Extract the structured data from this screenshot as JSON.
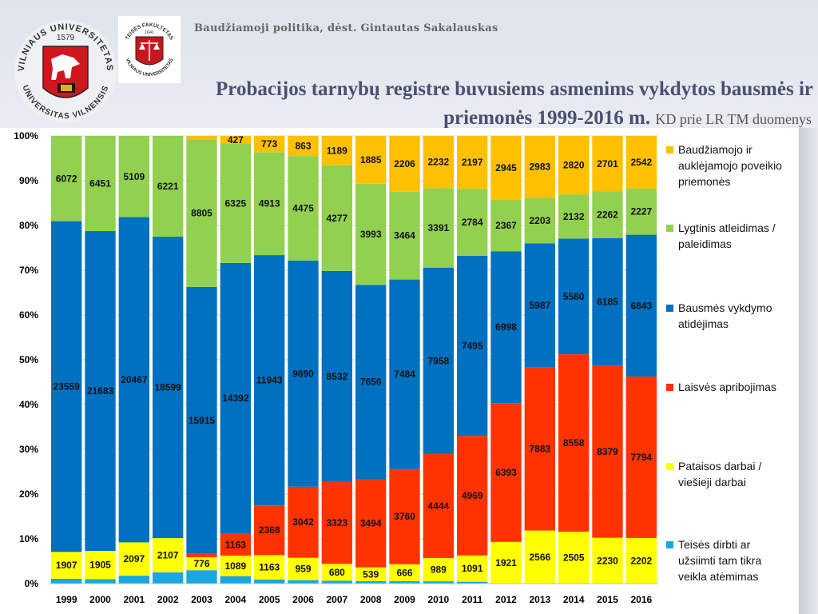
{
  "header": {
    "course": "Baudžiamoji politika, dėst. Gintautas Sakalauskas",
    "title_line1": "Probacijos tarnybų registre buvusiems asmenims vykdytos bausmės ir",
    "title_line2_bold": "priemonės 1999-2016 m.",
    "title_line2_source": "KD prie LR TM duomenys"
  },
  "logos": {
    "university_ring_top": "VILNIAUS UNIVERSITETAS",
    "university_ring_bottom": "UNIVERSITAS VILNENSIS",
    "university_year": "1579",
    "faculty_ring_top": "TEISĖS FAKULTETAS",
    "faculty_ring_bottom": "VILNIAUS UNIVERSITETAS",
    "faculty_year": "1641"
  },
  "chart_data": {
    "type": "bar",
    "stacking": "100%",
    "grid": true,
    "legend_position": "right",
    "ylim": [
      0,
      100
    ],
    "yticks": [
      "0%",
      "10%",
      "20%",
      "30%",
      "40%",
      "50%",
      "60%",
      "70%",
      "80%",
      "90%",
      "100%"
    ],
    "categories": [
      "1999",
      "2000",
      "2001",
      "2002",
      "2003",
      "2004",
      "2005",
      "2006",
      "2007",
      "2008",
      "2009",
      "2010",
      "2011",
      "2012",
      "2013",
      "2014",
      "2015",
      "2016"
    ],
    "series": [
      {
        "name": "Teisės dirbti ar užsiimti tam tikra veikla atėmimas",
        "color": "#1aa7e0",
        "values": [
          350,
          310,
          500,
          700,
          800,
          400,
          200,
          150,
          120,
          100,
          100,
          100,
          80,
          0,
          0,
          0,
          0,
          0
        ],
        "labels": [
          "",
          "",
          "",
          "",
          "",
          "",
          "",
          "",
          "",
          "",
          "",
          "",
          "",
          "",
          "",
          "",
          "",
          ""
        ]
      },
      {
        "name": "Pataisos darbai / viešieji darbai",
        "color": "#ffff00",
        "values": [
          1907,
          1905,
          2097,
          2107,
          776,
          1089,
          1163,
          959,
          680,
          539,
          666,
          989,
          1091,
          1921,
          2566,
          2505,
          2230,
          2202
        ],
        "labels": [
          "1907",
          "1905",
          "2097",
          "2107",
          "776",
          "1089",
          "1163",
          "959",
          "680",
          "539",
          "666",
          "989",
          "1091",
          "1921",
          "2566",
          "2505",
          "2230",
          "2202"
        ]
      },
      {
        "name": "Laisvės apribojimas",
        "color": "#ff3300",
        "values": [
          0,
          0,
          0,
          0,
          200,
          1163,
          2368,
          3042,
          3323,
          3494,
          3760,
          4444,
          4969,
          6393,
          7883,
          8558,
          8379,
          7794
        ],
        "labels": [
          "",
          "",
          "",
          "",
          "",
          "1163",
          "2368",
          "3042",
          "3323",
          "3494",
          "3760",
          "4444",
          "4969",
          "6393",
          "7883",
          "8558",
          "8379",
          "7794"
        ]
      },
      {
        "name": "Bausmės vykdymo atidėjimas",
        "color": "#0070c0",
        "values": [
          23559,
          21683,
          20467,
          18599,
          15915,
          14392,
          11943,
          9690,
          8532,
          7656,
          7484,
          7958,
          7495,
          6998,
          5987,
          5580,
          6185,
          6843
        ],
        "labels": [
          "23559",
          "21683",
          "20467",
          "18599",
          "15915",
          "14392",
          "11943",
          "9690",
          "8532",
          "7656",
          "7484",
          "7958",
          "7495",
          "6998",
          "5987",
          "5580",
          "6185",
          "6843"
        ]
      },
      {
        "name": "Lygtinis atleidimas / paleidimas",
        "color": "#92d050",
        "values": [
          6072,
          6451,
          5109,
          6221,
          8805,
          6325,
          4913,
          4475,
          4277,
          3993,
          3464,
          3391,
          2784,
          2367,
          2203,
          2132,
          2262,
          2227
        ],
        "labels": [
          "6072",
          "6451",
          "5109",
          "6221",
          "8805",
          "6325",
          "4913",
          "4475",
          "4277",
          "3993",
          "3464",
          "3391",
          "2784",
          "2367",
          "2203",
          "2132",
          "2262",
          "2227"
        ]
      },
      {
        "name": "Baudžiamojo ir auklėjamojo poveikio priemonės",
        "color": "#ffc000",
        "values": [
          0,
          0,
          0,
          0,
          200,
          427,
          773,
          863,
          1189,
          1885,
          2206,
          2232,
          2197,
          2945,
          2983,
          2820,
          2701,
          2542
        ],
        "labels": [
          "",
          "",
          "",
          "",
          "",
          "427",
          "773",
          "863",
          "1189",
          "1885",
          "2206",
          "2232",
          "2197",
          "2945",
          "2983",
          "2820",
          "2701",
          "2542"
        ]
      }
    ],
    "legend_order": [
      5,
      4,
      3,
      2,
      1,
      0
    ],
    "legend_lines": [
      [
        "Baudžiamojo ir",
        "auklėjamojo poveikio",
        "priemonės"
      ],
      [
        "Lygtinis atleidimas /",
        "paleidimas"
      ],
      [
        "Bausmės vykdymo",
        "atidėjimas"
      ],
      [
        "Laisvės apribojimas"
      ],
      [
        "Pataisos darbai /",
        "viešieji darbai"
      ],
      [
        "Teisės dirbti ar",
        "užsiimti tam tikra",
        "veikla atėmimas"
      ]
    ]
  }
}
